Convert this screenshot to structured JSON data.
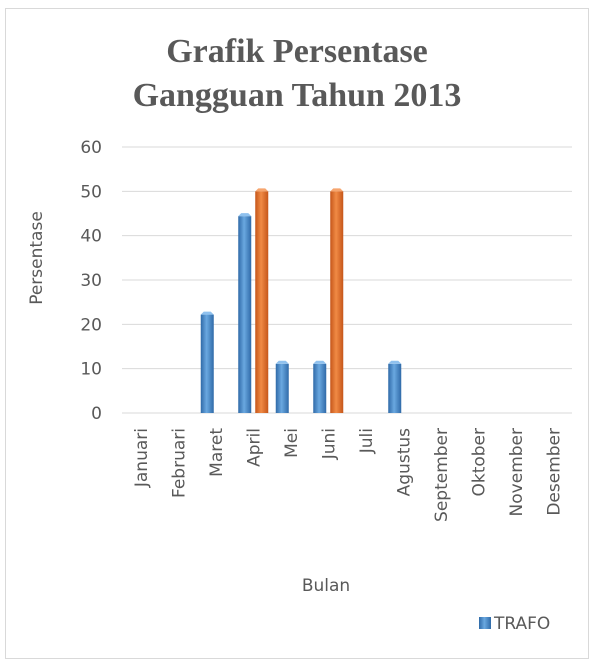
{
  "chart_data": {
    "type": "bar",
    "title_lines": [
      "Grafik Persentase",
      "Gangguan Tahun 2013"
    ],
    "xlabel": "Bulan",
    "ylabel": "Persentase",
    "ylim": [
      0,
      60
    ],
    "yticks": [
      0,
      10,
      20,
      30,
      40,
      50,
      60
    ],
    "categories": [
      "Januari",
      "Februari",
      "Maret",
      "April",
      "Mei",
      "Juni",
      "Juli",
      "Agustus",
      "September",
      "Oktober",
      "November",
      "Desember"
    ],
    "series": [
      {
        "name": "TRAFO",
        "color": "#4a8ccb",
        "values": [
          0,
          0,
          22.2,
          44.4,
          11.1,
          11.1,
          0,
          11.1,
          0,
          0,
          0,
          0
        ]
      },
      {
        "color": "#e2712d",
        "values": [
          0,
          0,
          0,
          50,
          0,
          50,
          0,
          0,
          0,
          0,
          0,
          0
        ]
      }
    ],
    "grid": true,
    "legend_position": "bottom-right"
  }
}
